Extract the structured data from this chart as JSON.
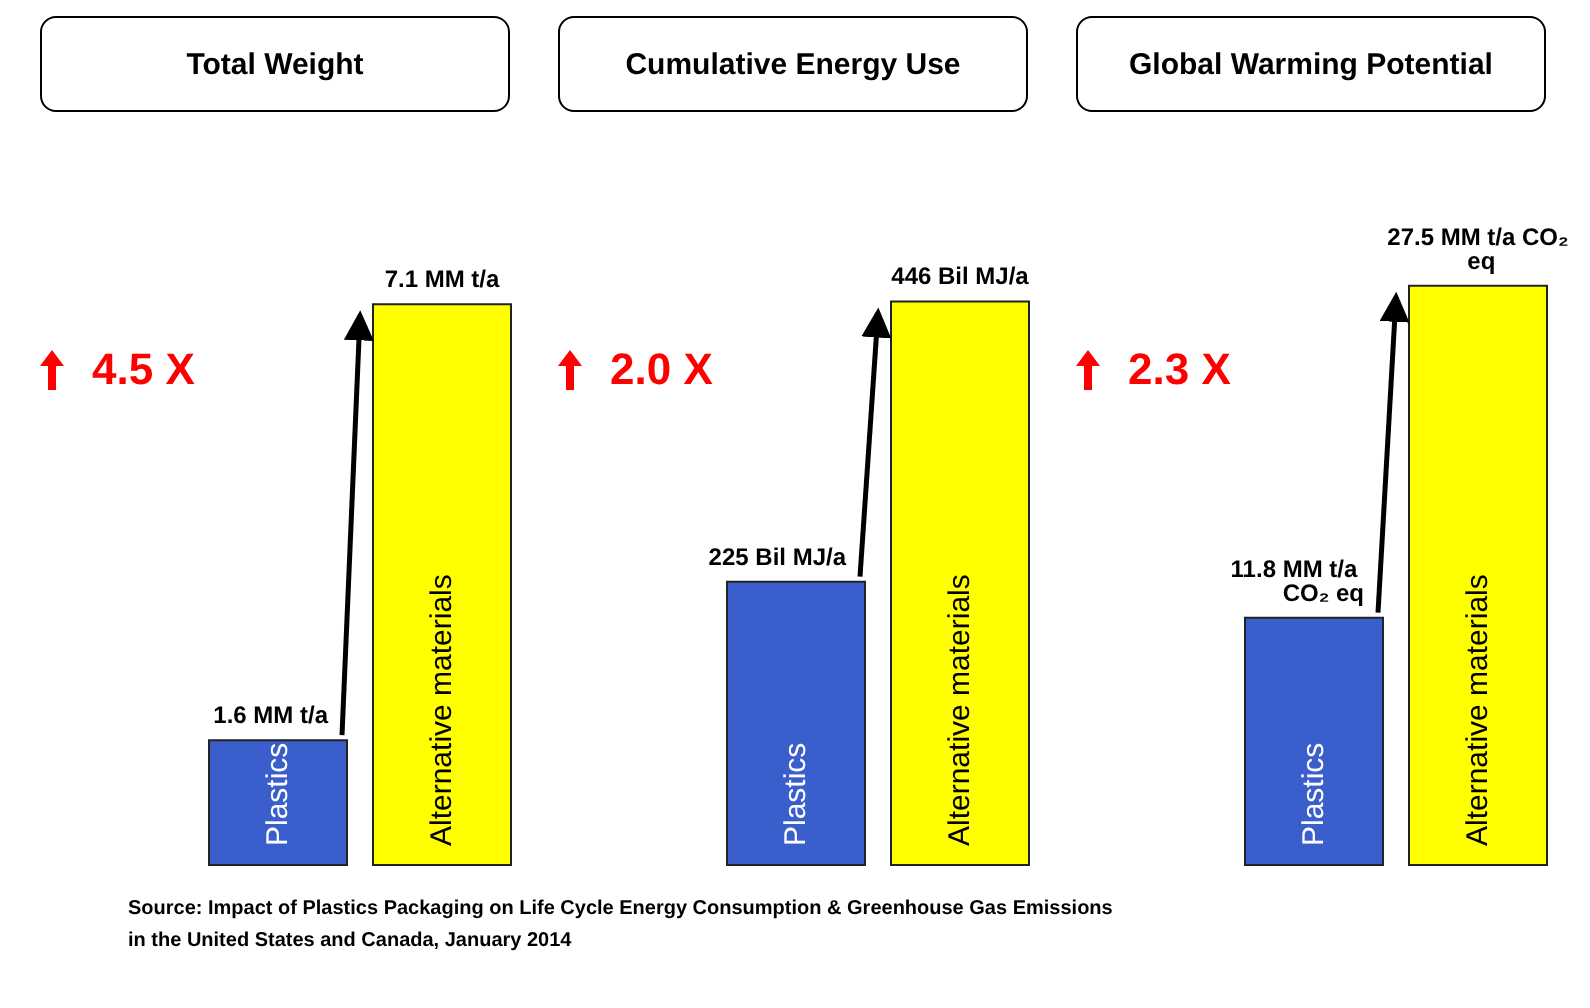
{
  "chart_data": [
    {
      "type": "bar",
      "title": "Total Weight",
      "categories": [
        "Plastics",
        "Alternative materials"
      ],
      "values": [
        1.6,
        7.1
      ],
      "colors": [
        "#3a5fcd",
        "#ffff00"
      ],
      "value_labels": [
        "1.6 MM t/a",
        "7.1 MM t/a"
      ],
      "annotations": [
        "4.5 X"
      ]
    },
    {
      "type": "bar",
      "title": "Cumulative Energy Use",
      "categories": [
        "Plastics",
        "Alternative materials"
      ],
      "values": [
        225,
        446
      ],
      "colors": [
        "#3a5fcd",
        "#ffff00"
      ],
      "value_labels": [
        "225 Bil MJ/a",
        "446 Bil MJ/a"
      ],
      "annotations": [
        "2.0 X"
      ]
    },
    {
      "type": "bar",
      "title": "Global Warming Potential",
      "categories": [
        "Plastics",
        "Alternative materials"
      ],
      "values": [
        11.8,
        27.5
      ],
      "colors": [
        "#3a5fcd",
        "#ffff00"
      ],
      "value_labels": [
        "11.8 MM t/a CO₂ eq",
        "27.5 MM t/a CO₂ eq"
      ],
      "annotations": [
        "2.3 X",
        "Source: Impact of Plastics Packaging on Life Cycle Energy Consumption & Greenhouse Gas Emissions in the United States and Canada, January 2014"
      ]
    }
  ]
}
